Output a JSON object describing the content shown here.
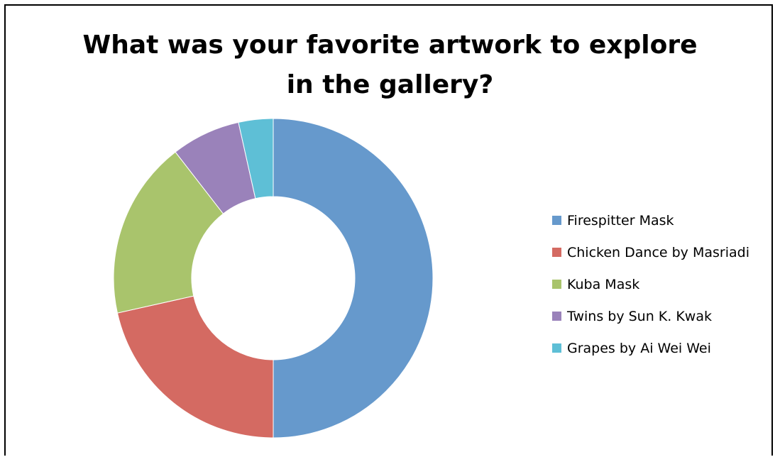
{
  "chart_data": {
    "type": "pie",
    "donut": true,
    "title_lines": [
      "What was your favorite artwork to explore",
      "in the gallery?"
    ],
    "series": [
      {
        "name": "Firespitter Mask",
        "value": 50,
        "color": "#6699cc"
      },
      {
        "name": "Chicken Dance by Masriadi",
        "value": 21.5,
        "color": "#d46a62"
      },
      {
        "name": "Kuba Mask",
        "value": 18,
        "color": "#a9c46c"
      },
      {
        "name": "Twins by Sun K. Kwak",
        "value": 7,
        "color": "#9a82ba"
      },
      {
        "name": "Grapes by Ai Wei Wei",
        "value": 3.5,
        "color": "#5ebfd6"
      }
    ],
    "legend_position": "right"
  }
}
